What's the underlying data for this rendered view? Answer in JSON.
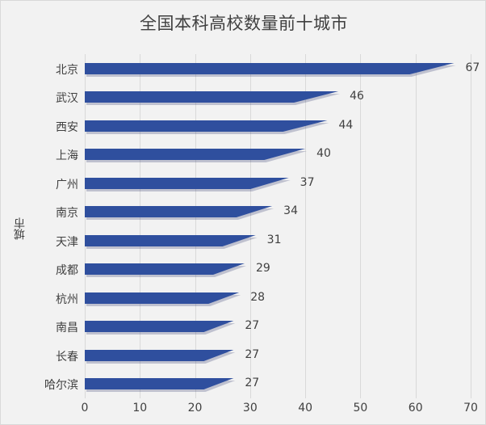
{
  "chart_data": {
    "type": "bar",
    "orientation": "horizontal",
    "title": "全国本科高校数量前十城市",
    "xlabel": "",
    "ylabel": "城市",
    "xlim": [
      0,
      70
    ],
    "xticks": [
      0,
      10,
      20,
      30,
      40,
      50,
      60,
      70
    ],
    "grid": "vertical",
    "legend": null,
    "bar_color": "#2f4f9e",
    "categories": [
      "北京",
      "武汉",
      "西安",
      "上海",
      "广州",
      "南京",
      "天津",
      "成都",
      "杭州",
      "南昌",
      "长春",
      "哈尔滨"
    ],
    "values": [
      67,
      46,
      44,
      40,
      37,
      34,
      31,
      29,
      28,
      27,
      27,
      27
    ],
    "data_labels": [
      "67",
      "46",
      "44",
      "40",
      "37",
      "34",
      "31",
      "29",
      "28",
      "27",
      "27",
      "27"
    ]
  },
  "xtick_labels": [
    "0",
    "10",
    "20",
    "30",
    "40",
    "50",
    "60",
    "70"
  ]
}
